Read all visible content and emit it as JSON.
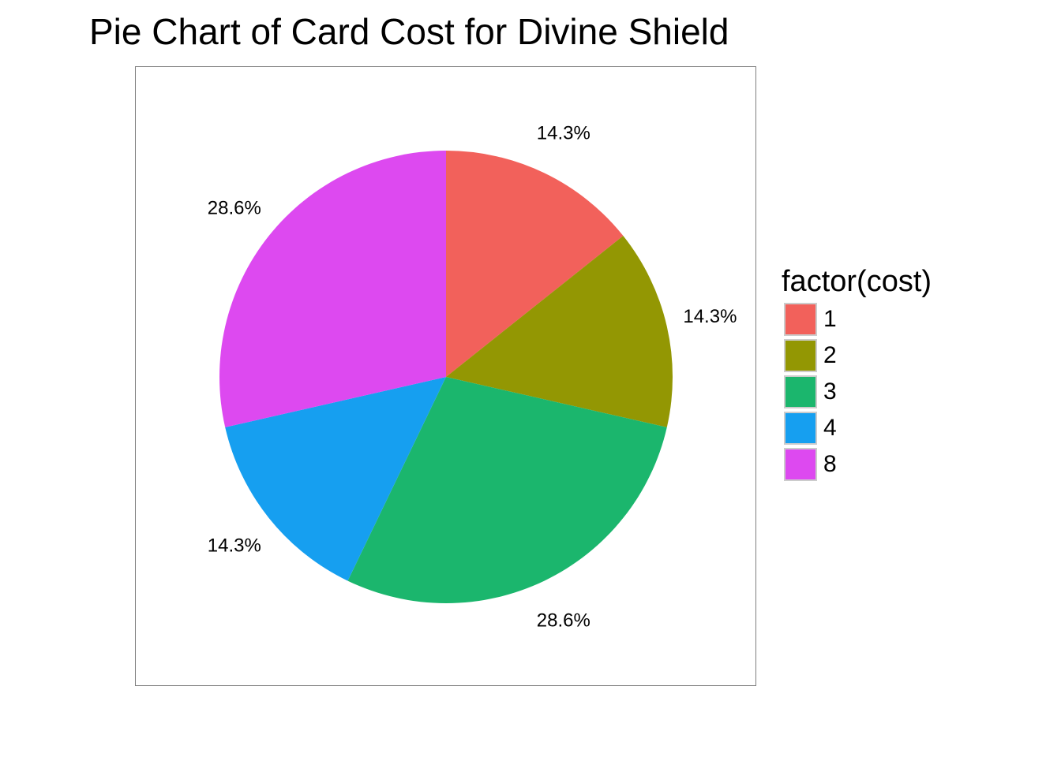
{
  "chart_data": {
    "type": "pie",
    "title": "Pie Chart of Card Cost for Divine Shield",
    "legend_title": "factor(cost)",
    "legend_position": "right",
    "grid": false,
    "categories": [
      "1",
      "2",
      "3",
      "4",
      "8"
    ],
    "values": [
      14.3,
      14.3,
      28.6,
      14.3,
      28.6
    ],
    "labels": [
      "14.3%",
      "14.3%",
      "28.6%",
      "14.3%",
      "28.6%"
    ],
    "colors": [
      "#F2615B",
      "#939703",
      "#1BB66D",
      "#169FF0",
      "#DD49F0"
    ],
    "label_color": "#000000",
    "direction": "clockwise",
    "start": "top"
  }
}
